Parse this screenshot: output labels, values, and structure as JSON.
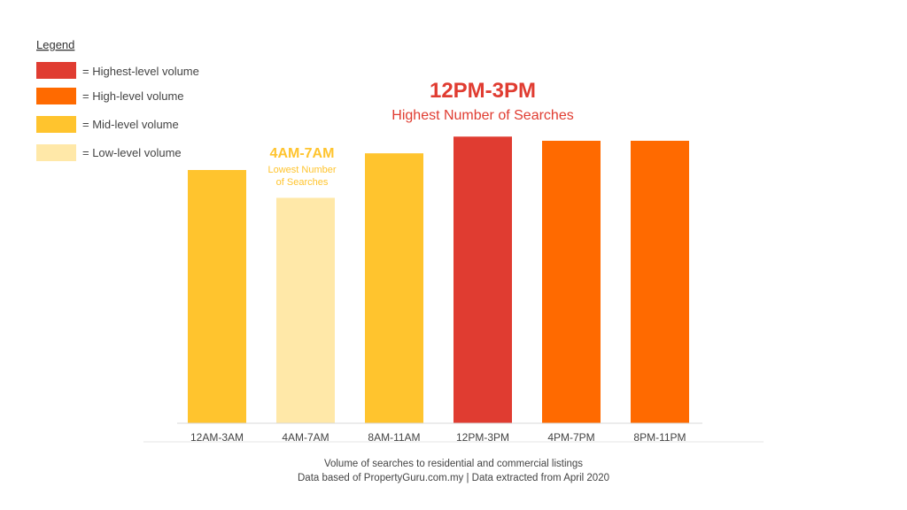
{
  "legend": {
    "title": "Legend",
    "items": [
      {
        "label": "= Highest-level volume",
        "color": "#E03C31"
      },
      {
        "label": "= High-level volume",
        "color": "#FF6A00"
      },
      {
        "label": "= Mid-level volume",
        "color": "#FFC42E"
      },
      {
        "label": "= Low-level volume",
        "color": "#FFE8A8"
      }
    ]
  },
  "annotations": {
    "highest": {
      "title": "12PM-3PM",
      "subtitle": "Highest Number of Searches",
      "color": "#E03C31"
    },
    "lowest": {
      "title": "4AM-7AM",
      "subtitle_line1": "Lowest Number",
      "subtitle_line2": "of Searches",
      "color": "#FFC42E"
    }
  },
  "caption": {
    "line1": "Volume of searches to residential and commercial listings",
    "line2": "Data based of PropertyGuru.com.my | Data extracted from April 2020"
  },
  "chart_data": {
    "type": "bar",
    "title": "",
    "xlabel": "",
    "ylabel": "",
    "categories": [
      "12AM-3AM",
      "4AM-7AM",
      "8AM-11AM",
      "12PM-3PM",
      "4PM-7PM",
      "8PM-11PM"
    ],
    "values": [
      91,
      81,
      97,
      103,
      101.5,
      101.5
    ],
    "levels": [
      "mid",
      "low",
      "mid",
      "highest",
      "high",
      "high"
    ],
    "colors": [
      "#FFC42E",
      "#FFE8A8",
      "#FFC42E",
      "#E03C31",
      "#FF6A00",
      "#FF6A00"
    ],
    "ylim": [
      0,
      105
    ],
    "grid": false,
    "legend_position": "top-left"
  }
}
